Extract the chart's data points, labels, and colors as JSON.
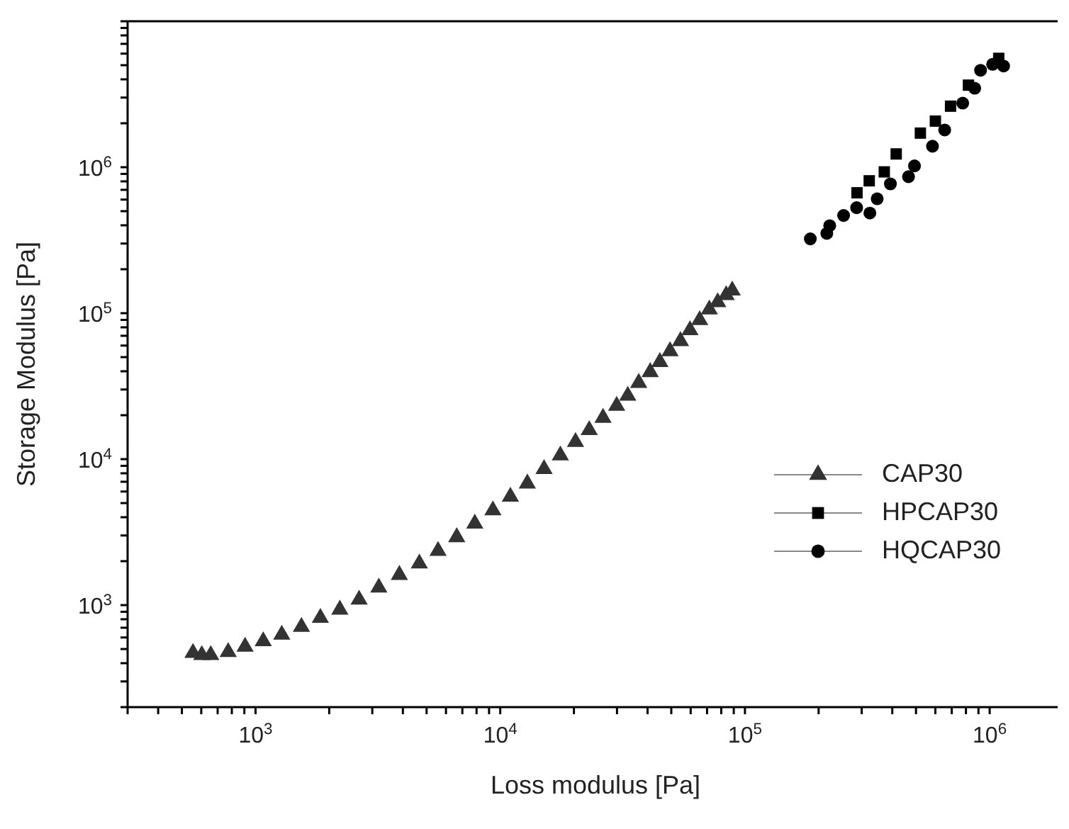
{
  "chart_data": {
    "type": "scatter",
    "xlabel": "Loss modulus [Pa]",
    "ylabel": "Storage Modulus [Pa]",
    "log": "xy",
    "legend": "bottom right",
    "grid": false,
    "xlim": [
      300,
      2000000
    ],
    "ylim": [
      200,
      10000000
    ],
    "xticks": [
      {
        "value": 300,
        "label": null
      },
      {
        "value": 400,
        "label": null
      },
      {
        "value": 500,
        "label": null
      },
      {
        "value": 600,
        "label": null
      },
      {
        "value": 700,
        "label": null
      },
      {
        "value": 800,
        "label": null
      },
      {
        "value": 900,
        "label": null
      },
      {
        "value": 1000,
        "label": "10$^{3}$"
      },
      {
        "value": 2000,
        "label": null
      },
      {
        "value": 3000,
        "label": null
      },
      {
        "value": 4000,
        "label": null
      },
      {
        "value": 5000,
        "label": null
      },
      {
        "value": 6000,
        "label": null
      },
      {
        "value": 7000,
        "label": null
      },
      {
        "value": 8000,
        "label": null
      },
      {
        "value": 9000,
        "label": null
      },
      {
        "value": 10000,
        "label": "10$^{4}$"
      },
      {
        "value": 20000,
        "label": null
      },
      {
        "value": 30000,
        "label": null
      },
      {
        "value": 40000,
        "label": null
      },
      {
        "value": 50000,
        "label": null
      },
      {
        "value": 60000,
        "label": null
      },
      {
        "value": 70000,
        "label": null
      },
      {
        "value": 80000,
        "label": null
      },
      {
        "value": 90000,
        "label": null
      },
      {
        "value": 100000,
        "label": "10$^{5}$"
      },
      {
        "value": 200000,
        "label": null
      },
      {
        "value": 300000,
        "label": null
      },
      {
        "value": 400000,
        "label": null
      },
      {
        "value": 500000,
        "label": null
      },
      {
        "value": 600000,
        "label": null
      },
      {
        "value": 700000,
        "label": null
      },
      {
        "value": 800000,
        "label": null
      },
      {
        "value": 900000,
        "label": null
      },
      {
        "value": 1000000,
        "label": "10$^{6}$"
      },
      {
        "value": 2000000,
        "label": null
      }
    ],
    "yticks": [
      {
        "value": 200,
        "label": null
      },
      {
        "value": 300,
        "label": null
      },
      {
        "value": 400,
        "label": null
      },
      {
        "value": 500,
        "label": null
      },
      {
        "value": 600,
        "label": null
      },
      {
        "value": 700,
        "label": null
      },
      {
        "value": 800,
        "label": null
      },
      {
        "value": 900,
        "label": null
      },
      {
        "value": 1000,
        "label": "10$^{3}$"
      },
      {
        "value": 2000,
        "label": null
      },
      {
        "value": 3000,
        "label": null
      },
      {
        "value": 4000,
        "label": null
      },
      {
        "value": 5000,
        "label": null
      },
      {
        "value": 6000,
        "label": null
      },
      {
        "value": 7000,
        "label": null
      },
      {
        "value": 8000,
        "label": null
      },
      {
        "value": 9000,
        "label": null
      },
      {
        "value": 10000,
        "label": "10$^{4}$"
      },
      {
        "value": 20000,
        "label": null
      },
      {
        "value": 30000,
        "label": null
      },
      {
        "value": 40000,
        "label": null
      },
      {
        "value": 50000,
        "label": null
      },
      {
        "value": 60000,
        "label": null
      },
      {
        "value": 70000,
        "label": null
      },
      {
        "value": 80000,
        "label": null
      },
      {
        "value": 90000,
        "label": null
      },
      {
        "value": 100000,
        "label": "10$^{5}$"
      },
      {
        "value": 200000,
        "label": null
      },
      {
        "value": 300000,
        "label": null
      },
      {
        "value": 400000,
        "label": null
      },
      {
        "value": 500000,
        "label": null
      },
      {
        "value": 600000,
        "label": null
      },
      {
        "value": 700000,
        "label": null
      },
      {
        "value": 800000,
        "label": null
      },
      {
        "value": 900000,
        "label": null
      },
      {
        "value": 1000000,
        "label": "10$^{6}$"
      },
      {
        "value": 2000000,
        "label": null
      },
      {
        "value": 3000000,
        "label": null
      },
      {
        "value": 4000000,
        "label": null
      },
      {
        "value": 5000000,
        "label": null
      },
      {
        "value": 6000000,
        "label": null
      },
      {
        "value": 7000000,
        "label": null
      },
      {
        "value": 8000000,
        "label": null
      },
      {
        "value": 9000000,
        "label": null
      },
      {
        "value": 10000000,
        "label": null
      }
    ],
    "series": [
      {
        "name": "CAP30",
        "color": "#333333",
        "marker": "triangle",
        "x": [
          555,
          603,
          656,
          773,
          906,
          1075,
          1280,
          1540,
          1840,
          2210,
          2650,
          3190,
          3870,
          4670,
          5570,
          6640,
          7870,
          9330,
          11000,
          12900,
          15100,
          17600,
          20300,
          23100,
          26300,
          29900,
          33200,
          36800,
          41000,
          44900,
          49400,
          54500,
          59600,
          65300,
          71500,
          77400,
          83800,
          88700
        ],
        "values": [
          470,
          455,
          455,
          477,
          519,
          565,
          627,
          709,
          817,
          931,
          1090,
          1320,
          1610,
          1930,
          2350,
          2920,
          3620,
          4460,
          5530,
          6810,
          8550,
          10600,
          13100,
          15800,
          19200,
          23200,
          27200,
          33300,
          39500,
          46300,
          54900,
          64400,
          76400,
          89700,
          106000,
          119000,
          133000,
          143000
        ]
      },
      {
        "name": "HPCAP30",
        "color": "#000000",
        "marker": "square",
        "x": [
          287000,
          322000,
          371000,
          415000,
          521000,
          600000,
          692000,
          819000,
          918000,
          1089000
        ],
        "values": [
          668000,
          807000,
          929000,
          1233000,
          1713000,
          2070000,
          2620000,
          3650000,
          null,
          5570000
        ]
      },
      {
        "name": "HQCAP30",
        "color": "#000000",
        "marker": "circle",
        "x": [
          185000,
          216000,
          222000,
          253000,
          286000,
          324000,
          347000,
          393000,
          466000,
          493000,
          584000,
          655000,
          776000,
          869000,
          918000,
          1028000,
          1140000
        ],
        "values": [
          323000,
          352000,
          398000,
          467000,
          528000,
          485000,
          608000,
          769000,
          861000,
          1021000,
          1393000,
          1799000,
          2748000,
          3475000,
          4613000,
          5070000,
          4932000
        ]
      }
    ]
  }
}
